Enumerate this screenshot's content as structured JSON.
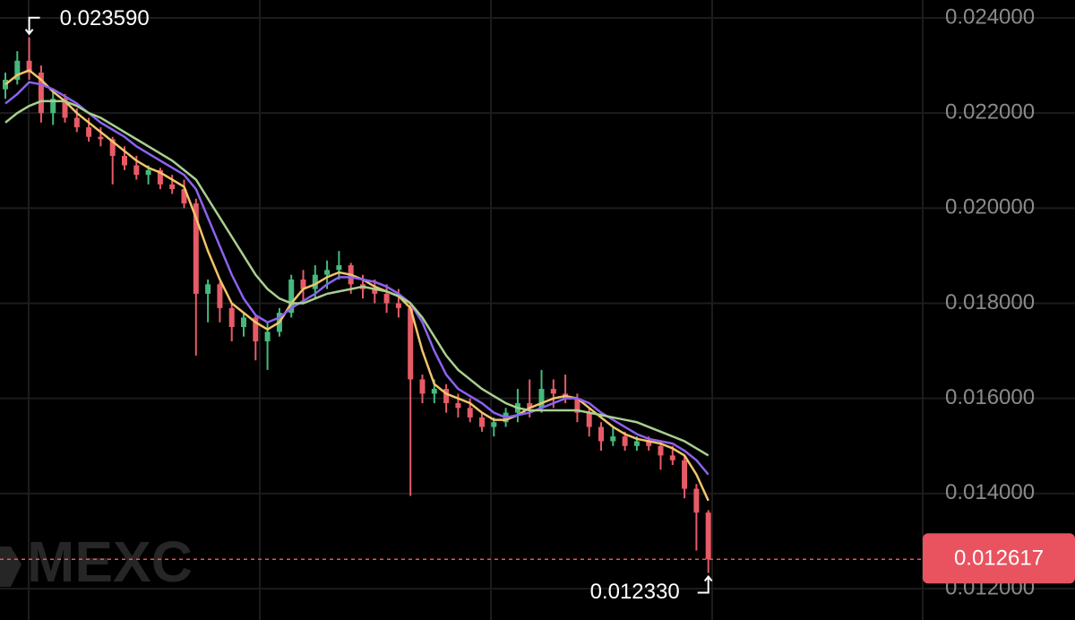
{
  "chart_data": {
    "type": "candlestick",
    "watermark": "MEXC",
    "up_color": "#45b97c",
    "down_color": "#e65b66",
    "open": [
      0.0225,
      0.0227,
      0.0231,
      0.02285,
      0.022,
      0.0223,
      0.0219,
      0.0217,
      0.0215,
      0.02145,
      0.0211,
      0.0209,
      0.0207,
      0.0208,
      0.0205,
      0.0204,
      0.0201,
      0.0182,
      0.0184,
      0.0179,
      0.0175,
      0.0177,
      0.0172,
      0.0174,
      0.0178,
      0.0185,
      0.0183,
      0.0186,
      0.0187,
      0.0188,
      0.0184,
      0.0183,
      0.0182,
      0.018,
      0.0179,
      0.0164,
      0.0161,
      0.0162,
      0.0159,
      0.0158,
      0.0156,
      0.0154,
      0.0155,
      0.0157,
      0.0159,
      0.0158,
      0.0162,
      0.0161,
      0.016,
      0.0157,
      0.0154,
      0.0151,
      0.0152,
      0.015,
      0.0151,
      0.015,
      0.0148,
      0.0147,
      0.0141,
      0.0136
    ],
    "high": [
      0.02285,
      0.0233,
      0.02359,
      0.023,
      0.0225,
      0.0224,
      0.0221,
      0.0219,
      0.0217,
      0.0215,
      0.0213,
      0.0211,
      0.0209,
      0.02085,
      0.0207,
      0.0206,
      0.0202,
      0.0185,
      0.01845,
      0.018,
      0.0178,
      0.01775,
      0.0176,
      0.0179,
      0.0186,
      0.0187,
      0.0188,
      0.0189,
      0.0191,
      0.01885,
      0.0186,
      0.0185,
      0.0184,
      0.0183,
      0.018,
      0.0165,
      0.0164,
      0.0163,
      0.0161,
      0.016,
      0.0157,
      0.0156,
      0.0158,
      0.0162,
      0.0164,
      0.0166,
      0.0164,
      0.0165,
      0.0161,
      0.0158,
      0.0155,
      0.0154,
      0.0153,
      0.0152,
      0.0152,
      0.0151,
      0.015,
      0.0148,
      0.0142,
      0.01365
    ],
    "low": [
      0.0223,
      0.0226,
      0.0227,
      0.0218,
      0.02175,
      0.0218,
      0.0216,
      0.0214,
      0.0213,
      0.0205,
      0.0208,
      0.0206,
      0.0205,
      0.0204,
      0.0203,
      0.02,
      0.0169,
      0.0176,
      0.0176,
      0.0172,
      0.0173,
      0.0168,
      0.0166,
      0.0173,
      0.0177,
      0.018,
      0.0181,
      0.0183,
      0.0185,
      0.0182,
      0.0181,
      0.018,
      0.0178,
      0.0177,
      0.01395,
      0.0159,
      0.0159,
      0.0157,
      0.0156,
      0.0155,
      0.0153,
      0.0152,
      0.0154,
      0.0155,
      0.0156,
      0.0157,
      0.0158,
      0.0159,
      0.0155,
      0.0152,
      0.0149,
      0.015,
      0.0149,
      0.0149,
      0.0149,
      0.0145,
      0.0146,
      0.0139,
      0.0128,
      0.01233
    ],
    "close": [
      0.0227,
      0.0231,
      0.02285,
      0.022,
      0.0223,
      0.0219,
      0.0217,
      0.0215,
      0.02145,
      0.0211,
      0.0209,
      0.0207,
      0.0208,
      0.0205,
      0.0204,
      0.0201,
      0.0182,
      0.0184,
      0.0179,
      0.0175,
      0.0177,
      0.0172,
      0.0174,
      0.0178,
      0.0185,
      0.0183,
      0.0186,
      0.0187,
      0.0188,
      0.0184,
      0.0183,
      0.0182,
      0.018,
      0.0179,
      0.0164,
      0.0161,
      0.0162,
      0.0159,
      0.0158,
      0.0156,
      0.0154,
      0.0155,
      0.0157,
      0.0159,
      0.0158,
      0.0162,
      0.0161,
      0.016,
      0.0157,
      0.0154,
      0.0151,
      0.0152,
      0.015,
      0.0151,
      0.015,
      0.0148,
      0.0147,
      0.0141,
      0.0136,
      0.012617
    ],
    "moving_averages": [
      {
        "color": "#f2c46a",
        "values": [
          0.0226,
          0.0228,
          0.0229,
          0.0227,
          0.02245,
          0.02225,
          0.022,
          0.0218,
          0.0216,
          0.0214,
          0.0212,
          0.021,
          0.02085,
          0.02075,
          0.0206,
          0.02045,
          0.0198,
          0.0191,
          0.0185,
          0.018,
          0.0178,
          0.0176,
          0.01745,
          0.0176,
          0.018,
          0.0183,
          0.0184,
          0.01855,
          0.01865,
          0.0186,
          0.0185,
          0.01835,
          0.01825,
          0.01815,
          0.0179,
          0.017,
          0.0163,
          0.0161,
          0.016,
          0.0159,
          0.0157,
          0.01555,
          0.01555,
          0.01565,
          0.0158,
          0.0159,
          0.016,
          0.01605,
          0.016,
          0.0158,
          0.0156,
          0.0154,
          0.01525,
          0.01515,
          0.0151,
          0.01505,
          0.01495,
          0.0148,
          0.0144,
          0.01385
        ]
      },
      {
        "color": "#8b63f0",
        "values": [
          0.0222,
          0.0224,
          0.02265,
          0.0226,
          0.0225,
          0.02235,
          0.0222,
          0.022,
          0.0218,
          0.02165,
          0.0215,
          0.0213,
          0.02115,
          0.021,
          0.02085,
          0.0207,
          0.0204,
          0.0198,
          0.0192,
          0.0186,
          0.0181,
          0.01775,
          0.0176,
          0.0177,
          0.0179,
          0.01805,
          0.0182,
          0.0184,
          0.01855,
          0.01855,
          0.0185,
          0.01845,
          0.01835,
          0.0182,
          0.018,
          0.0176,
          0.017,
          0.0165,
          0.0162,
          0.01605,
          0.0159,
          0.0157,
          0.0156,
          0.01565,
          0.0157,
          0.0158,
          0.0159,
          0.016,
          0.016,
          0.0159,
          0.0157,
          0.01555,
          0.0154,
          0.01525,
          0.01515,
          0.0151,
          0.01505,
          0.0149,
          0.0147,
          0.0144
        ]
      },
      {
        "color": "#a9cf8f",
        "values": [
          0.0218,
          0.022,
          0.02215,
          0.02225,
          0.02225,
          0.02225,
          0.02215,
          0.022,
          0.0219,
          0.02175,
          0.0216,
          0.02145,
          0.0213,
          0.02115,
          0.021,
          0.0208,
          0.0206,
          0.0202,
          0.0198,
          0.0194,
          0.019,
          0.0186,
          0.0183,
          0.0181,
          0.018,
          0.018,
          0.0181,
          0.0182,
          0.01825,
          0.0183,
          0.01835,
          0.0183,
          0.01825,
          0.01815,
          0.018,
          0.0177,
          0.0173,
          0.0169,
          0.0166,
          0.0164,
          0.0162,
          0.01605,
          0.0159,
          0.0158,
          0.01575,
          0.01575,
          0.01575,
          0.01575,
          0.01575,
          0.0157,
          0.01565,
          0.0156,
          0.01555,
          0.0155,
          0.0154,
          0.0153,
          0.0152,
          0.0151,
          0.01495,
          0.0148
        ]
      }
    ],
    "ylim": [
      0.011341,
      0.024377
    ],
    "yticks": [
      {
        "value": 0.012,
        "label": "0.012000"
      },
      {
        "value": 0.014,
        "label": "0.014000"
      },
      {
        "value": 0.016,
        "label": "0.016000"
      },
      {
        "value": 0.018,
        "label": "0.018000"
      },
      {
        "value": 0.02,
        "label": "0.020000"
      },
      {
        "value": 0.022,
        "label": "0.022000"
      },
      {
        "value": 0.024,
        "label": "0.024000"
      }
    ],
    "grid": true,
    "high_marker": {
      "value": 0.02359,
      "label": "0.023590"
    },
    "low_marker": {
      "value": 0.01233,
      "label": "0.012330"
    },
    "last_price": {
      "value": 0.012617,
      "label": "0.012617",
      "color": "#e8535f"
    }
  }
}
